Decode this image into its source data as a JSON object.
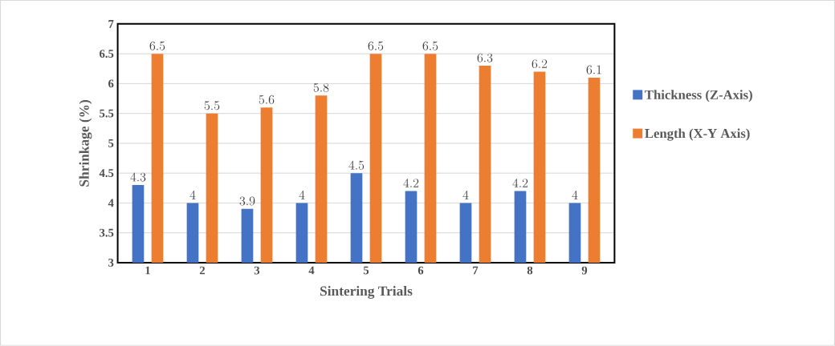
{
  "chart_data": {
    "type": "bar",
    "xlabel": "Sintering Trials",
    "ylabel": "Shrinkage (%)",
    "categories": [
      "1",
      "2",
      "3",
      "4",
      "5",
      "6",
      "7",
      "8",
      "9"
    ],
    "series": [
      {
        "name": "Thickness (Z-Axis)",
        "color": "#4472c4",
        "values": [
          4.3,
          4,
          3.9,
          4,
          4.5,
          4.2,
          4,
          4.2,
          4
        ]
      },
      {
        "name": "Length (X-Y Axis)",
        "color": "#ed7d31",
        "values": [
          6.5,
          5.5,
          5.6,
          5.8,
          6.5,
          6.5,
          6.3,
          6.2,
          6.1
        ]
      }
    ],
    "ylim": [
      3,
      7
    ],
    "yticks": [
      3,
      3.5,
      4,
      4.5,
      5,
      5.5,
      6,
      6.5,
      7
    ],
    "grid": "y",
    "legend": "right",
    "data_labels": true
  }
}
